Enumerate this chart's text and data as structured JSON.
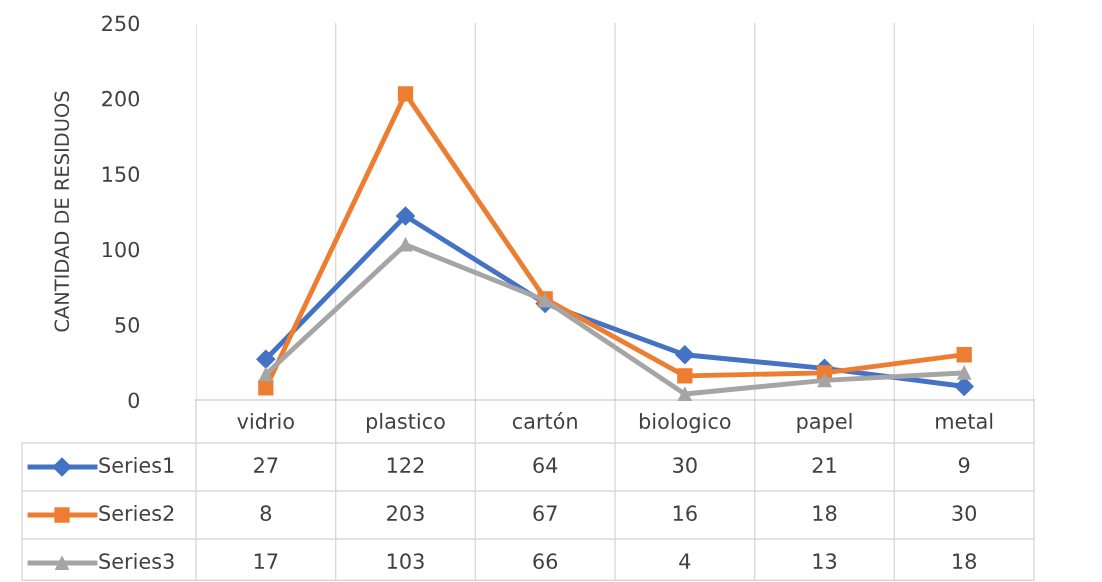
{
  "chart_data": {
    "type": "line",
    "ylabel": "CANTIDAD DE RESIDUOS",
    "categories": [
      "vidrio",
      "plastico",
      "cartón",
      "biologico",
      "papel",
      "metal"
    ],
    "series": [
      {
        "name": "Series1",
        "color": "#4472c4",
        "marker": "diamond",
        "values": [
          27,
          122,
          64,
          30,
          21,
          9
        ]
      },
      {
        "name": "Series2",
        "color": "#ed7d31",
        "marker": "square",
        "values": [
          8,
          203,
          67,
          16,
          18,
          30
        ]
      },
      {
        "name": "Series3",
        "color": "#a5a5a5",
        "marker": "triangle",
        "values": [
          17,
          103,
          66,
          4,
          13,
          18
        ]
      }
    ],
    "ylim": [
      0,
      250
    ],
    "yticks": [
      0,
      50,
      100,
      150,
      200,
      250
    ],
    "grid": "x",
    "legend": "bottom",
    "data_labels": true
  }
}
